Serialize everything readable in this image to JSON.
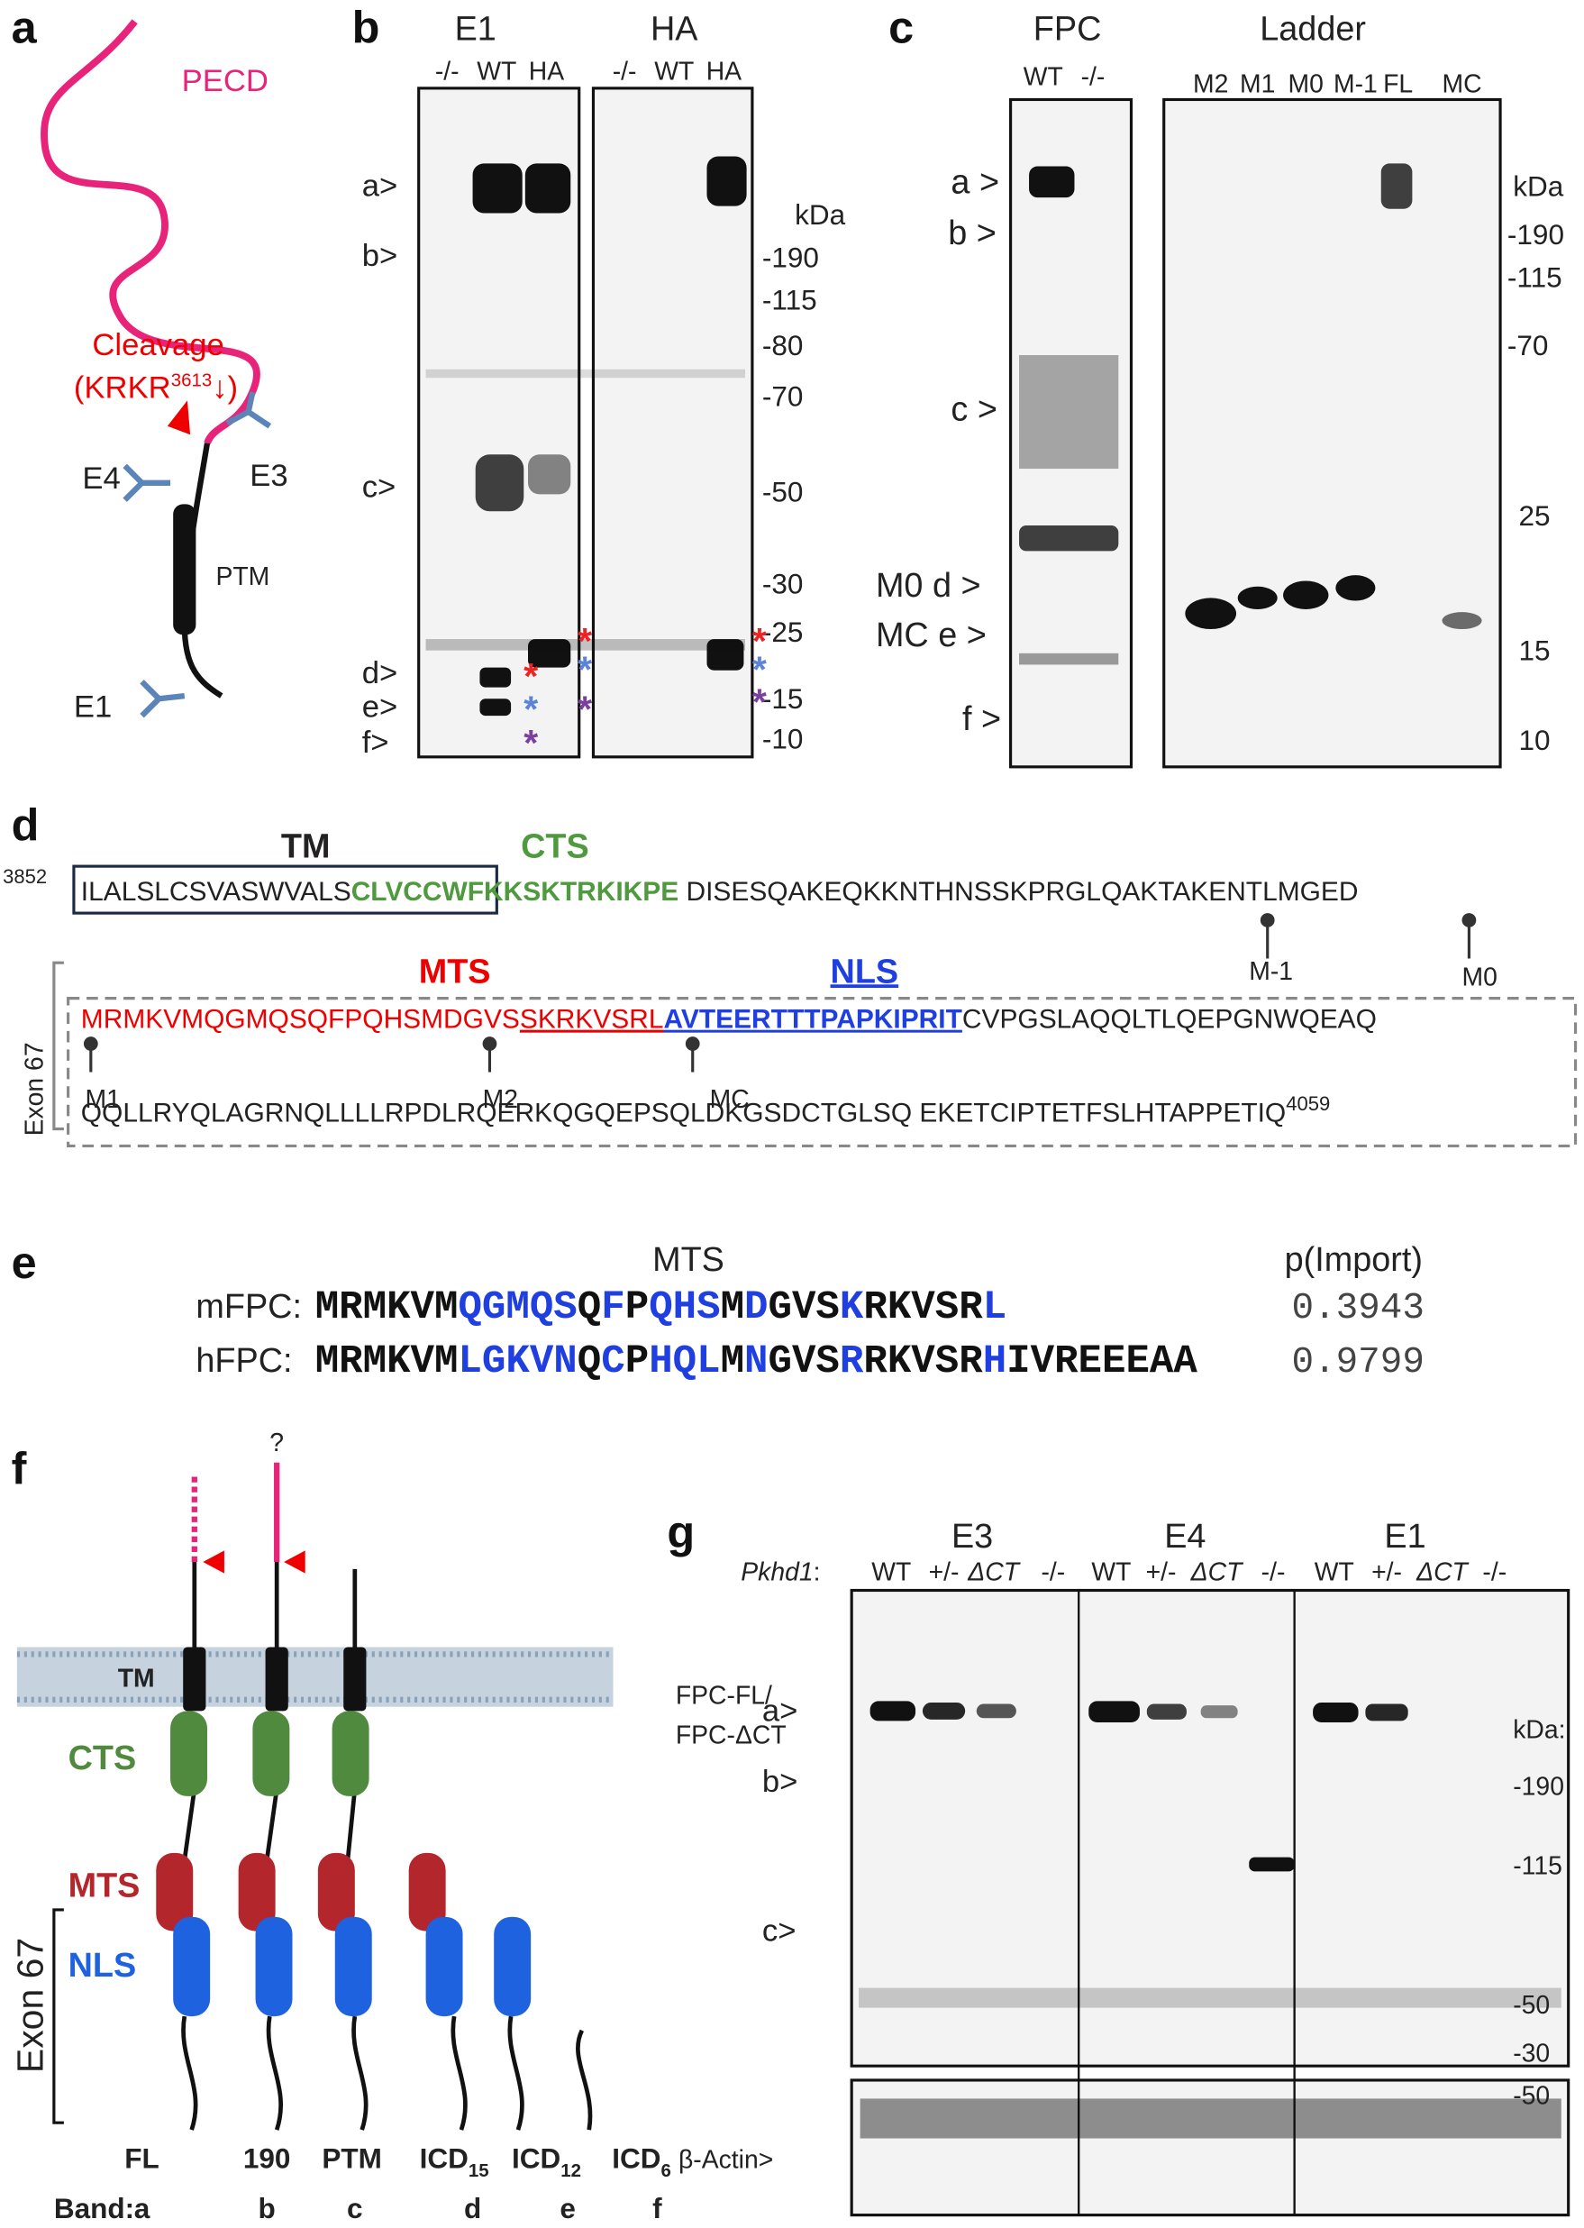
{
  "panel_labels": [
    "a",
    "b",
    "c",
    "d",
    "e",
    "f",
    "g"
  ],
  "a": {
    "pecd": "PECD",
    "cleavage": "Cleavage",
    "site_pre": "(KRKR",
    "site_sup": "3613",
    "site_post": "↓)",
    "e4": "E4",
    "e3": "E3",
    "ptm": "PTM",
    "e1": "E1"
  },
  "b": {
    "groups": [
      "E1",
      "HA"
    ],
    "lanes": [
      "-/-",
      "WT",
      "HA",
      "-/-",
      "WT",
      "HA"
    ],
    "bands": [
      "a>",
      "b>",
      "c>",
      "d>",
      "e>",
      "f>"
    ],
    "unit": "kDa",
    "markers": [
      "-190",
      "-115",
      "-80",
      "-70",
      "-50",
      "-30",
      "-25",
      "-15",
      "-10"
    ]
  },
  "c": {
    "groups": [
      "FPC",
      "Ladder"
    ],
    "lanes_fpc": [
      "WT",
      "-/-"
    ],
    "lanes_ladder": [
      "M2",
      "M1",
      "M0",
      "M-1",
      "FL",
      "MC"
    ],
    "bands": [
      "a >",
      "b >",
      "c >",
      "M0 d >",
      "MC e >",
      "f >"
    ],
    "unit": "kDa",
    "markers": [
      "-190",
      "-115",
      "-70",
      "25",
      "15",
      "10"
    ]
  },
  "d": {
    "tm": "TM",
    "cts": "CTS",
    "mts": "MTS",
    "nls": "NLS",
    "start": "3852",
    "line1": [
      "ILALSLCSVASWVALS",
      "CLVCC",
      "WFKKSKTRKIKPE",
      " DISESQAKEQKKNTHNSSKPRGLQAKTAKENTLMGED"
    ],
    "line2": [
      "MRMKVMQGMQSQFPQHSMDGVS",
      "SKRKVSRL",
      "AVTEERTTTPAPKIPRIT",
      "CVPGSLAQQLTLQEPGNWQEAQ"
    ],
    "line3": "QQLLRYQLAGRNQLLLLRPDLRQERKQGQEPSQLDKGSDCTGLSQ  EKETCIPTETFSLHTAPPETIQ",
    "end": "4059",
    "sites": [
      "M-1",
      "M0",
      "M1",
      "M2",
      "MC"
    ],
    "exon": "Exon 67"
  },
  "e": {
    "title": "MTS",
    "score_header": "p(Import)",
    "rows": [
      {
        "name": "mFPC:",
        "segments": [
          "MRMKVM",
          "QGMQS",
          "Q",
          "F",
          "P",
          "QHS",
          "M",
          "D",
          "GVS",
          "K",
          "RKVSR",
          "L"
        ],
        "score": "0.3943"
      },
      {
        "name": "hFPC:",
        "segments": [
          "MRMKVM",
          "LGKVN",
          "Q",
          "C",
          "P",
          "HQL",
          "M",
          "N",
          "GVS",
          "R",
          "RKVSR",
          "H",
          "IVREEEAA"
        ],
        "score": "0.9799"
      }
    ]
  },
  "f": {
    "question": "?",
    "tm": "TM",
    "cts": "CTS",
    "mts": "MTS",
    "nls": "NLS",
    "exon": "Exon 67",
    "forms": [
      {
        "name": "FL"
      },
      {
        "name": "190"
      },
      {
        "name": "PTM"
      },
      {
        "name": "ICD",
        "sub": "15"
      },
      {
        "name": "ICD",
        "sub": "12"
      },
      {
        "name": "ICD",
        "sub": "6"
      }
    ],
    "band_label": "Band:",
    "bands": [
      "a",
      "b",
      "c",
      "d",
      "e",
      "f"
    ]
  },
  "g": {
    "groups": [
      "E3",
      "E4",
      "E1"
    ],
    "gene": "Pkhd1",
    "gene_suffix": ":",
    "lanes": [
      "WT",
      "+/-",
      "ΔCT",
      "-/-",
      "WT",
      "+/-",
      "ΔCT",
      "-/-",
      "WT",
      "+/-",
      "ΔCT",
      "-/-"
    ],
    "fpc_labels": [
      "FPC-FL/",
      "FPC-ΔCT"
    ],
    "bands": [
      "a>",
      "b>",
      "c>"
    ],
    "unit": "kDa:",
    "markers": [
      "-190",
      "-115",
      "-50",
      "-30"
    ],
    "actin": "β-Actin>",
    "actin_marker": "-50"
  }
}
